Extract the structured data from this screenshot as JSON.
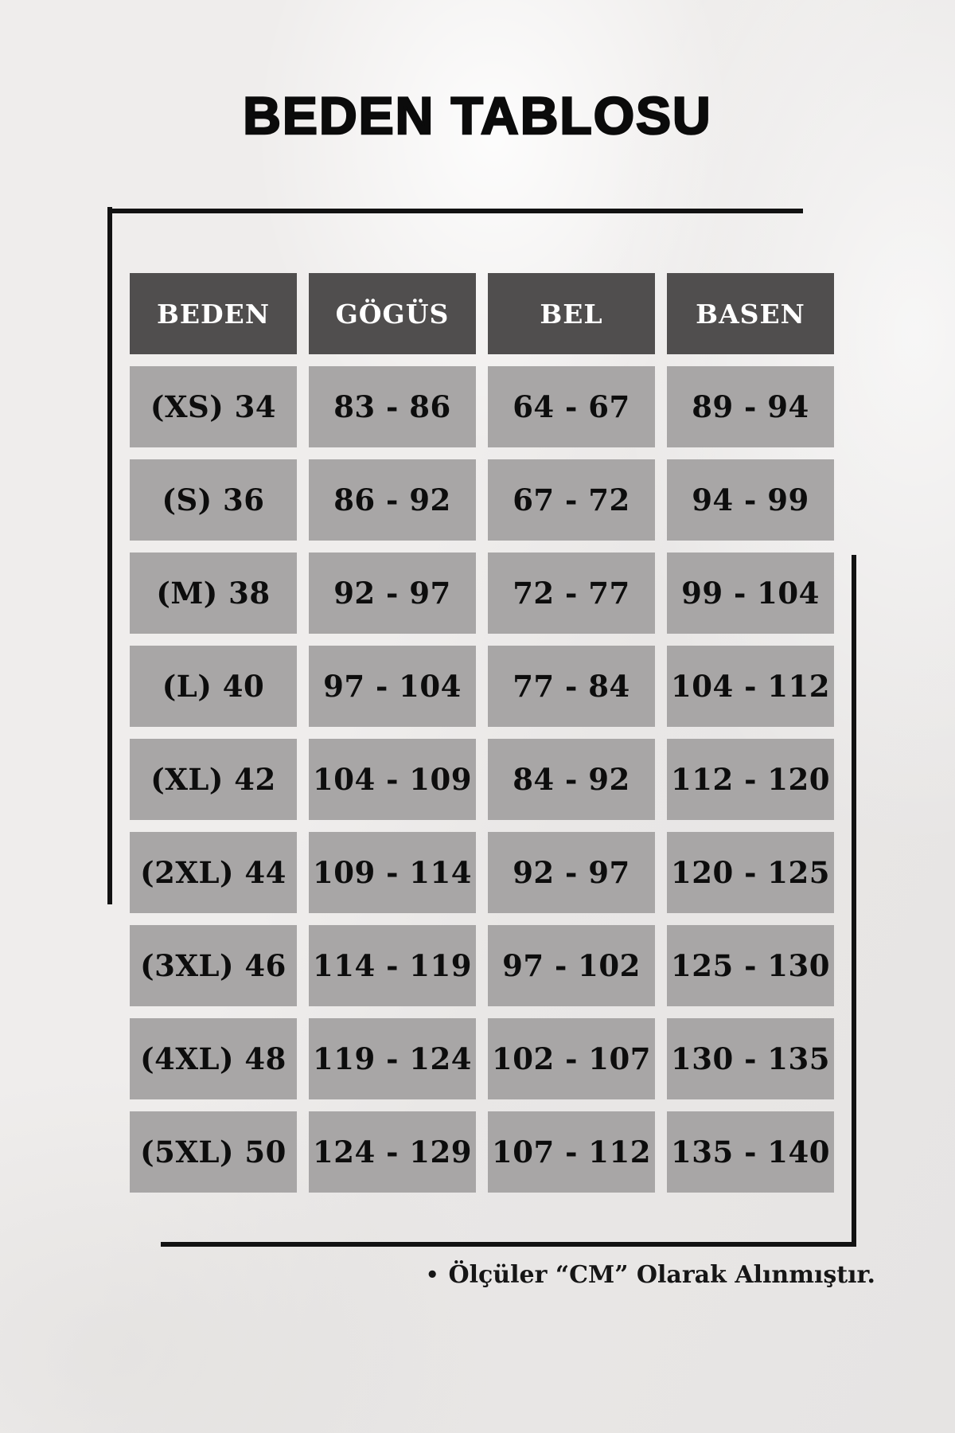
{
  "page": {
    "title": "BEDEN TABLOSU",
    "footnote_bullet": "•",
    "footnote": "Ölçüler “CM” Olarak Alınmıştır."
  },
  "table": {
    "headers": [
      "BEDEN",
      "GÖGÜS",
      "BEL",
      "BASEN"
    ],
    "rows": [
      [
        "(XS) 34",
        "83 - 86",
        "64 - 67",
        "89 - 94"
      ],
      [
        "(S) 36",
        "86 - 92",
        "67 - 72",
        "94 - 99"
      ],
      [
        "(M) 38",
        "92 - 97",
        "72 - 77",
        "99 - 104"
      ],
      [
        "(L) 40",
        "97 - 104",
        "77 - 84",
        "104 - 112"
      ],
      [
        "(XL) 42",
        "104 - 109",
        "84 - 92",
        "112 - 120"
      ],
      [
        "(2XL) 44",
        "109 - 114",
        "92 - 97",
        "120 - 125"
      ],
      [
        "(3XL) 46",
        "114 - 119",
        "97 - 102",
        "125 - 130"
      ],
      [
        "(4XL) 48",
        "119 - 124",
        "102 - 107",
        "130 - 135"
      ],
      [
        "(5XL) 50",
        "124 - 129",
        "107 - 112",
        "135 - 140"
      ]
    ]
  },
  "colors": {
    "background": "#ebe9e8",
    "header_bg": "#504e4e",
    "header_text": "#ffffff",
    "cell_bg": "#a8a6a6",
    "cell_text": "#0d0d0d",
    "frame_line": "#121212"
  }
}
